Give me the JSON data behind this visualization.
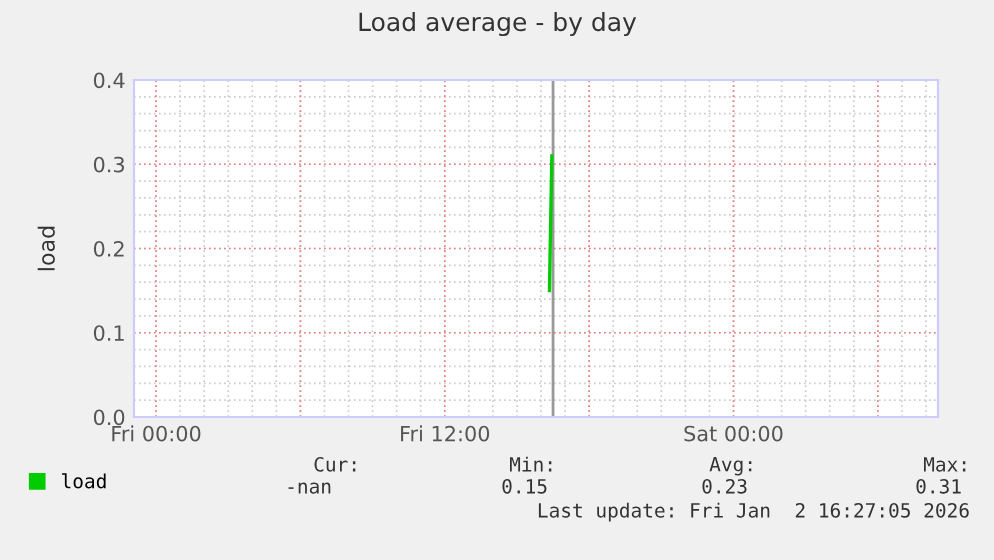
{
  "chart_data": {
    "type": "line",
    "title": "Load average - by day",
    "ylabel": "load",
    "x": [
      "2026-01-02T16:21",
      "2026-01-02T16:27"
    ],
    "series": [
      {
        "name": "load",
        "color": "#00cc00",
        "values": [
          0.15,
          0.31
        ]
      }
    ],
    "xlim": [
      "2026-01-01T23:05",
      "2026-01-03T08:30"
    ],
    "xticks": [
      {
        "value": "2026-01-02T00:00",
        "label": "Fri 00:00"
      },
      {
        "value": "2026-01-02T12:00",
        "label": "Fri 12:00"
      },
      {
        "value": "2026-01-03T00:00",
        "label": "Sat 00:00"
      }
    ],
    "ylim": [
      0,
      0.4
    ],
    "yticks": [
      {
        "value": 0,
        "label": "0.0"
      },
      {
        "value": 0.1,
        "label": "0.1"
      },
      {
        "value": 0.2,
        "label": "0.2"
      },
      {
        "value": 0.3,
        "label": "0.3"
      },
      {
        "value": 0.4,
        "label": "0.4"
      }
    ],
    "ref_lines": [
      {
        "axis": "x",
        "value": "2026-01-02T16:30",
        "label": null,
        "color": "#999999"
      }
    ],
    "grid": true,
    "legend": "bottom",
    "marker": "none",
    "line_style": "solid",
    "annotations": [
      "Cur:",
      "Min:",
      "Avg:",
      "Max:",
      "-nan",
      "0.15",
      "0.23",
      "0.31",
      "Last update: Fri Jan  2 16:27:05 2026"
    ]
  }
}
